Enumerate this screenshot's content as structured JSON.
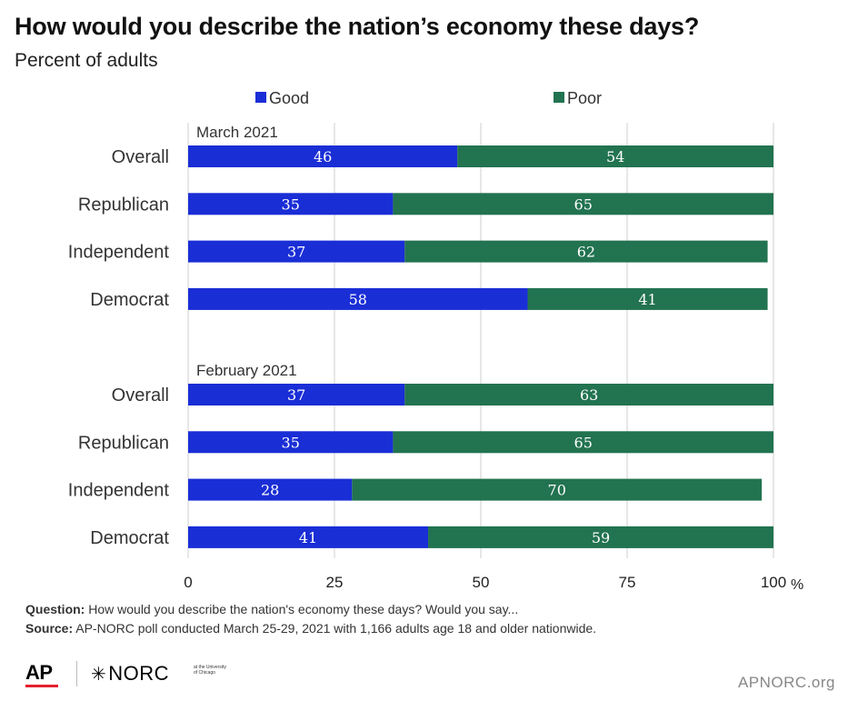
{
  "title": "How would you describe the nation’s economy these days?",
  "subtitle": "Percent of adults",
  "legend": [
    {
      "label": "Good",
      "color": "#1a2ed6"
    },
    {
      "label": "Poor",
      "color": "#227350"
    }
  ],
  "chart_data": {
    "type": "bar",
    "orientation": "horizontal",
    "stacked": true,
    "xlim": [
      0,
      100
    ],
    "x_ticks": [
      "0",
      "25",
      "50",
      "75",
      "100"
    ],
    "x_unit": "%",
    "grid": true,
    "legend_position": "top",
    "groups": [
      {
        "label": "March 2021",
        "categories": [
          "Overall",
          "Republican",
          "Independent",
          "Democrat"
        ],
        "series": [
          {
            "name": "Good",
            "values": [
              46,
              35,
              37,
              58
            ]
          },
          {
            "name": "Poor",
            "values": [
              54,
              65,
              62,
              41
            ]
          }
        ]
      },
      {
        "label": "February 2021",
        "categories": [
          "Overall",
          "Republican",
          "Independent",
          "Democrat"
        ],
        "series": [
          {
            "name": "Good",
            "values": [
              37,
              35,
              28,
              41
            ]
          },
          {
            "name": "Poor",
            "values": [
              63,
              65,
              70,
              59
            ]
          }
        ]
      }
    ]
  },
  "footer": {
    "question_label": "Question:",
    "question_text": " How would you describe the nation's economy these days? Would you say...",
    "source_label": "Source:",
    "source_text": " AP-NORC poll conducted March 25-29, 2021 with 1,166 adults age 18 and older nationwide."
  },
  "logos": {
    "ap": "AP",
    "norc": "NORC",
    "norc_sub": "at the University of Chicago",
    "norc_icon": "star-asterisk-icon"
  },
  "site": "APNORC.org"
}
